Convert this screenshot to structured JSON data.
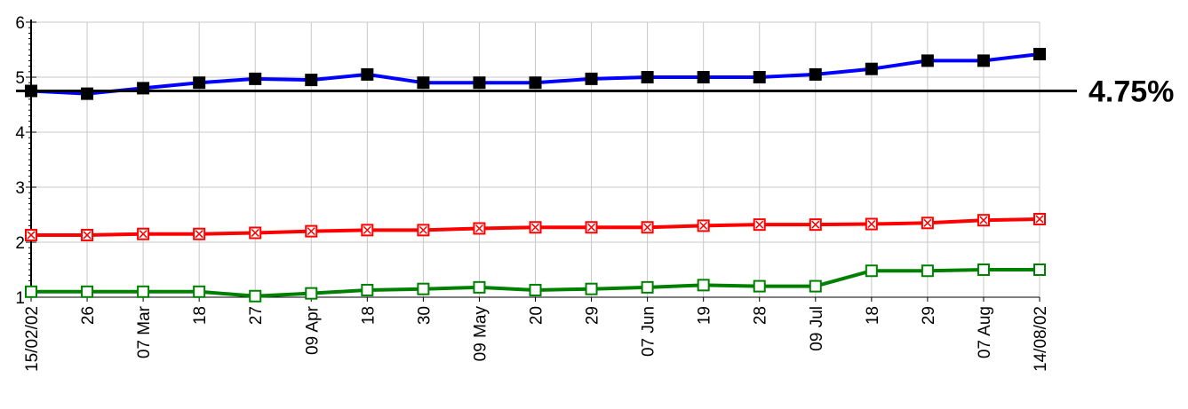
{
  "chart_data": {
    "type": "line",
    "title": "",
    "xlabel": "",
    "ylabel": "",
    "ylim": [
      1,
      6
    ],
    "y_ticks": [
      "1",
      "2",
      "3",
      "4",
      "5",
      "6"
    ],
    "x_tick_labels": [
      "15/02/02",
      "26",
      "07 Mar",
      "18",
      "27",
      "09 Apr",
      "18",
      "30",
      "09 May",
      "20",
      "29",
      "07 Jun",
      "19",
      "28",
      "09 Jul",
      "18",
      "29",
      "07 Aug",
      "14/08/02"
    ],
    "grid": true,
    "reference_line": {
      "value": 4.75,
      "label": "4.75%",
      "color": "#000000"
    },
    "series": [
      {
        "color": "#0000ff",
        "marker": "filled-square",
        "marker_color": "#000000",
        "values": [
          4.75,
          4.7,
          4.8,
          4.9,
          4.97,
          4.95,
          5.05,
          4.9,
          4.9,
          4.9,
          4.97,
          5.0,
          5.0,
          5.0,
          5.05,
          5.15,
          5.3,
          5.3,
          5.42
        ]
      },
      {
        "color": "#ff0000",
        "marker": "hollow-square-x",
        "marker_color": "#ff0000",
        "values": [
          2.13,
          2.13,
          2.15,
          2.15,
          2.17,
          2.2,
          2.22,
          2.22,
          2.25,
          2.27,
          2.27,
          2.27,
          2.3,
          2.32,
          2.32,
          2.33,
          2.35,
          2.4,
          2.42
        ]
      },
      {
        "color": "#008000",
        "marker": "hollow-square",
        "marker_color": "#008000",
        "values": [
          1.1,
          1.1,
          1.1,
          1.1,
          1.02,
          1.07,
          1.13,
          1.15,
          1.18,
          1.13,
          1.15,
          1.18,
          1.22,
          1.2,
          1.2,
          1.48,
          1.48,
          1.5,
          1.5
        ]
      }
    ]
  }
}
